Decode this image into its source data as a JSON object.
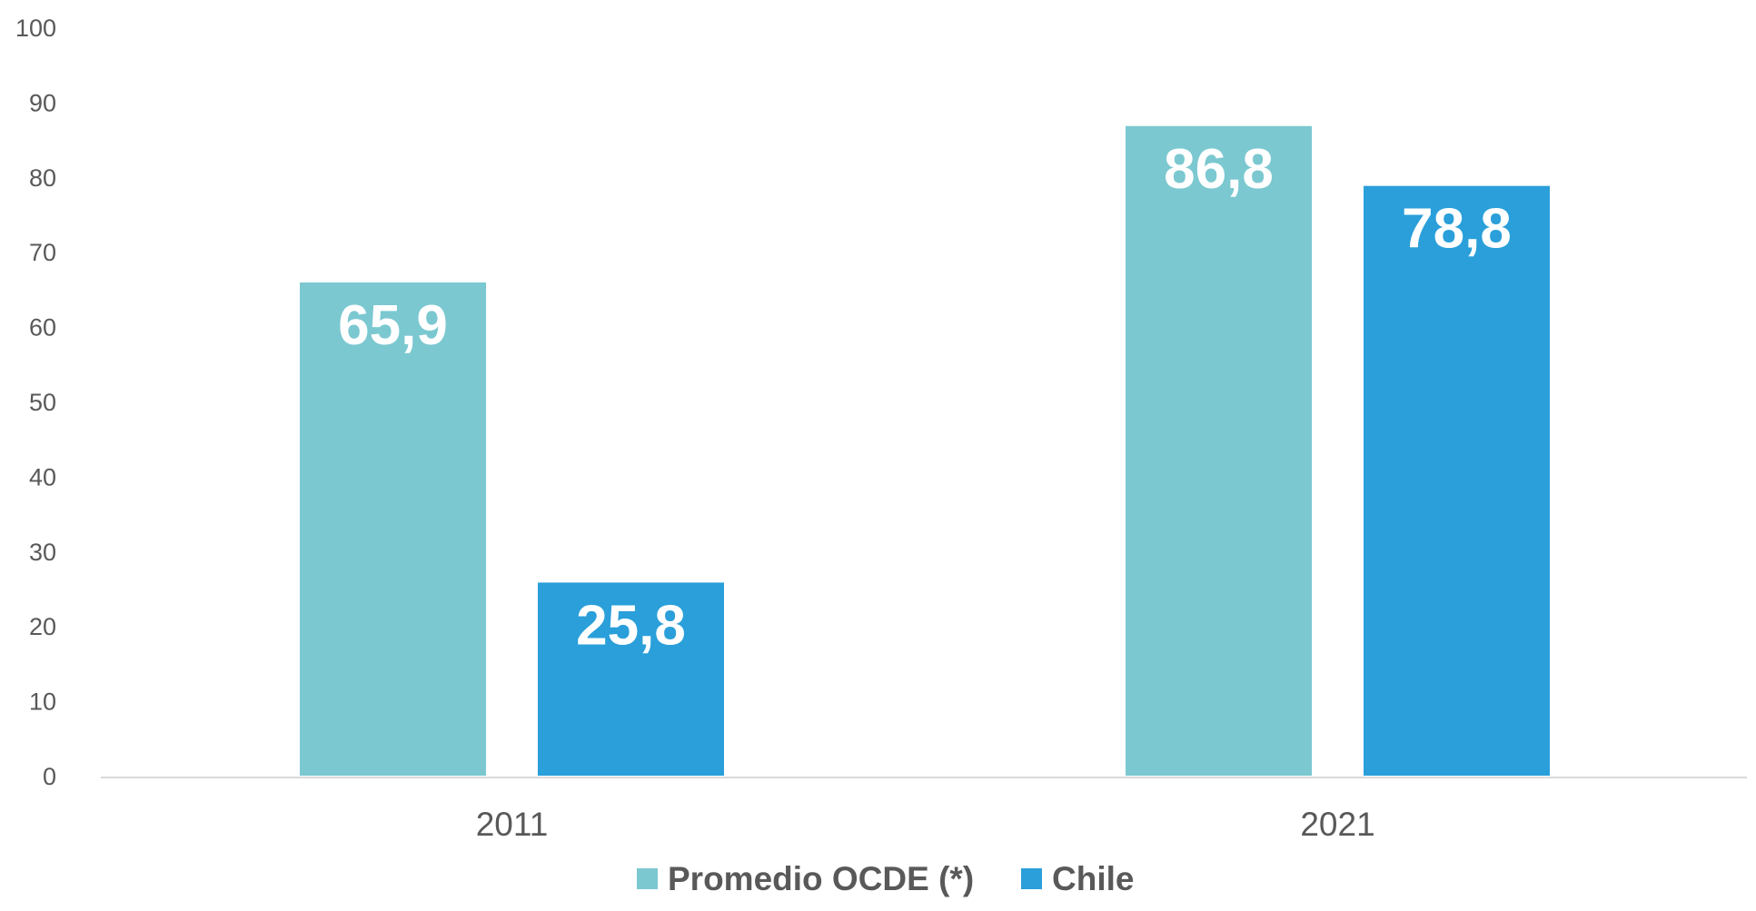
{
  "chart_data": {
    "type": "bar",
    "title": "",
    "xlabel": "",
    "ylabel": "",
    "ylim": [
      0,
      100
    ],
    "yticks": [
      0,
      10,
      20,
      30,
      40,
      50,
      60,
      70,
      80,
      90,
      100
    ],
    "grid": false,
    "legend_position": "bottom",
    "categories": [
      "2011",
      "2021"
    ],
    "series": [
      {
        "name": "Promedio OCDE (*)",
        "color": "#7BC8D1",
        "values": [
          65.9,
          86.8
        ],
        "labels": [
          "65,9",
          "86,8"
        ]
      },
      {
        "name": "Chile",
        "color": "#2A9FDA",
        "values": [
          25.8,
          78.8
        ],
        "labels": [
          "25,8",
          "78,8"
        ]
      }
    ]
  }
}
